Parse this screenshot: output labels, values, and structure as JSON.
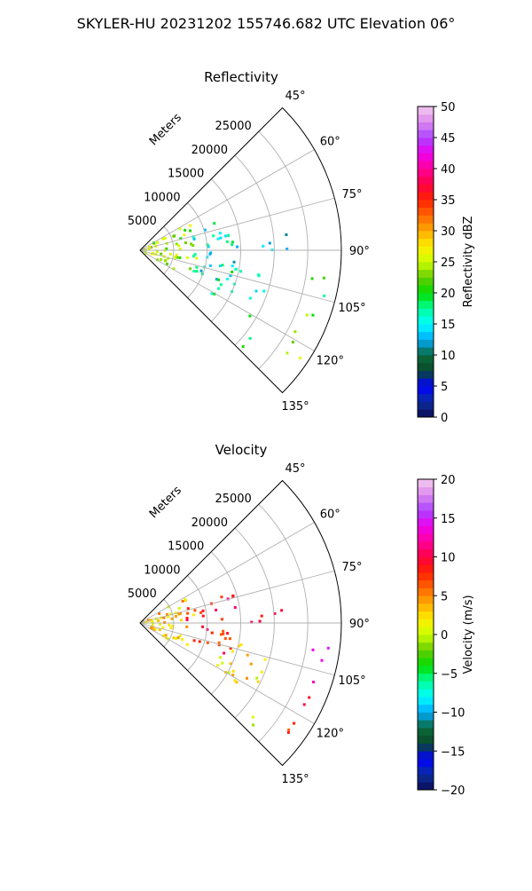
{
  "figure": {
    "title": "SKYLER-HU  20231202  155746.682 UTC Elevation 06°"
  },
  "chart_data": [
    {
      "type": "heatmap",
      "projection": "polar-sector",
      "title": "Reflectivity",
      "range_axis_label": "Meters",
      "range_ticks": [
        5000,
        10000,
        15000,
        20000,
        25000
      ],
      "range_tick_labels": [
        "5000",
        "10000",
        "15000",
        "20000",
        "25000"
      ],
      "range_lim": [
        0,
        30000
      ],
      "azimuth_ticks": [
        45,
        60,
        75,
        90,
        105,
        120,
        135
      ],
      "azimuth_tick_labels": [
        "45°",
        "60°",
        "75°",
        "90°",
        "105°",
        "120°",
        "135°"
      ],
      "azimuth_lim": [
        45,
        135
      ],
      "grid": true,
      "colorbar": {
        "label": "Reflectivity dBZ",
        "min": 0,
        "max": 50,
        "ticks": [
          0,
          5,
          10,
          15,
          20,
          25,
          30,
          35,
          40,
          45,
          50
        ],
        "tick_labels": [
          "0",
          "5",
          "10",
          "15",
          "20",
          "25",
          "30",
          "35",
          "40",
          "45",
          "50"
        ],
        "stops": [
          "#0b0b55",
          "#0a2f9c",
          "#0000ff",
          "#0a4a2a",
          "#0a6a3a",
          "#00aaff",
          "#00ffff",
          "#00ff99",
          "#00dd00",
          "#66cc00",
          "#ccff00",
          "#ffee00",
          "#ffaa00",
          "#ff6600",
          "#ff2200",
          "#ff0044",
          "#ff0099",
          "#ee00ee",
          "#aa44ff",
          "#dd88ee",
          "#f4ccee"
        ]
      },
      "clusters": [
        {
          "az": [
            60,
            120
          ],
          "r": [
            300,
            8500
          ],
          "value": 24
        },
        {
          "az": [
            70,
            88
          ],
          "r": [
            7000,
            15000
          ],
          "value": 16
        },
        {
          "az": [
            92,
            112
          ],
          "r": [
            7500,
            14500
          ],
          "value": 15
        },
        {
          "az": [
            96,
            108
          ],
          "r": [
            26000,
            28500
          ],
          "value": 20
        },
        {
          "az": [
            108,
            118
          ],
          "r": [
            26000,
            28500
          ],
          "value": 22
        },
        {
          "az": [
            120,
            130
          ],
          "r": [
            26500,
            28800
          ],
          "value": 23
        },
        {
          "az": [
            128,
            134
          ],
          "r": [
            21000,
            24500
          ],
          "value": 21
        },
        {
          "az": [
            82,
            90
          ],
          "r": [
            16000,
            22000
          ],
          "value": 14
        },
        {
          "az": [
            100,
            122
          ],
          "r": [
            12000,
            20000
          ],
          "value": 17
        }
      ]
    },
    {
      "type": "heatmap",
      "projection": "polar-sector",
      "title": "Velocity",
      "range_axis_label": "Meters",
      "range_ticks": [
        5000,
        10000,
        15000,
        20000,
        25000
      ],
      "range_tick_labels": [
        "5000",
        "10000",
        "15000",
        "20000",
        "25000"
      ],
      "range_lim": [
        0,
        30000
      ],
      "azimuth_ticks": [
        45,
        60,
        75,
        90,
        105,
        120,
        135
      ],
      "azimuth_tick_labels": [
        "45°",
        "60°",
        "75°",
        "90°",
        "105°",
        "120°",
        "135°"
      ],
      "azimuth_lim": [
        45,
        135
      ],
      "grid": true,
      "colorbar": {
        "label": "Velocity (m/s)",
        "min": -20,
        "max": 20,
        "ticks": [
          -20,
          -15,
          -10,
          -5,
          0,
          5,
          10,
          15,
          20
        ],
        "tick_labels": [
          "−20",
          "−15",
          "−10",
          "−5",
          "0",
          "5",
          "10",
          "15",
          "20"
        ],
        "stops": [
          "#0b0b55",
          "#0a2f9c",
          "#0000ff",
          "#0a4a2a",
          "#0a6a3a",
          "#00aaff",
          "#00ffff",
          "#00ff99",
          "#00dd00",
          "#66cc00",
          "#ccff00",
          "#ffee00",
          "#ffaa00",
          "#ff6600",
          "#ff2200",
          "#ff0044",
          "#ff0099",
          "#ee00ee",
          "#aa44ff",
          "#dd88ee",
          "#f4ccee"
        ]
      },
      "clusters": [
        {
          "az": [
            60,
            120
          ],
          "r": [
            300,
            8500
          ],
          "value": 3
        },
        {
          "az": [
            70,
            88
          ],
          "r": [
            7000,
            15000
          ],
          "value": 9
        },
        {
          "az": [
            92,
            112
          ],
          "r": [
            7500,
            14500
          ],
          "value": 8
        },
        {
          "az": [
            96,
            108
          ],
          "r": [
            26000,
            28500
          ],
          "value": 13
        },
        {
          "az": [
            108,
            118
          ],
          "r": [
            26000,
            28500
          ],
          "value": 10
        },
        {
          "az": [
            120,
            130
          ],
          "r": [
            26500,
            28800
          ],
          "value": 7
        },
        {
          "az": [
            128,
            134
          ],
          "r": [
            21000,
            24500
          ],
          "value": 1
        },
        {
          "az": [
            82,
            90
          ],
          "r": [
            16000,
            22000
          ],
          "value": 9
        },
        {
          "az": [
            100,
            122
          ],
          "r": [
            12000,
            20000
          ],
          "value": 2
        }
      ]
    }
  ]
}
